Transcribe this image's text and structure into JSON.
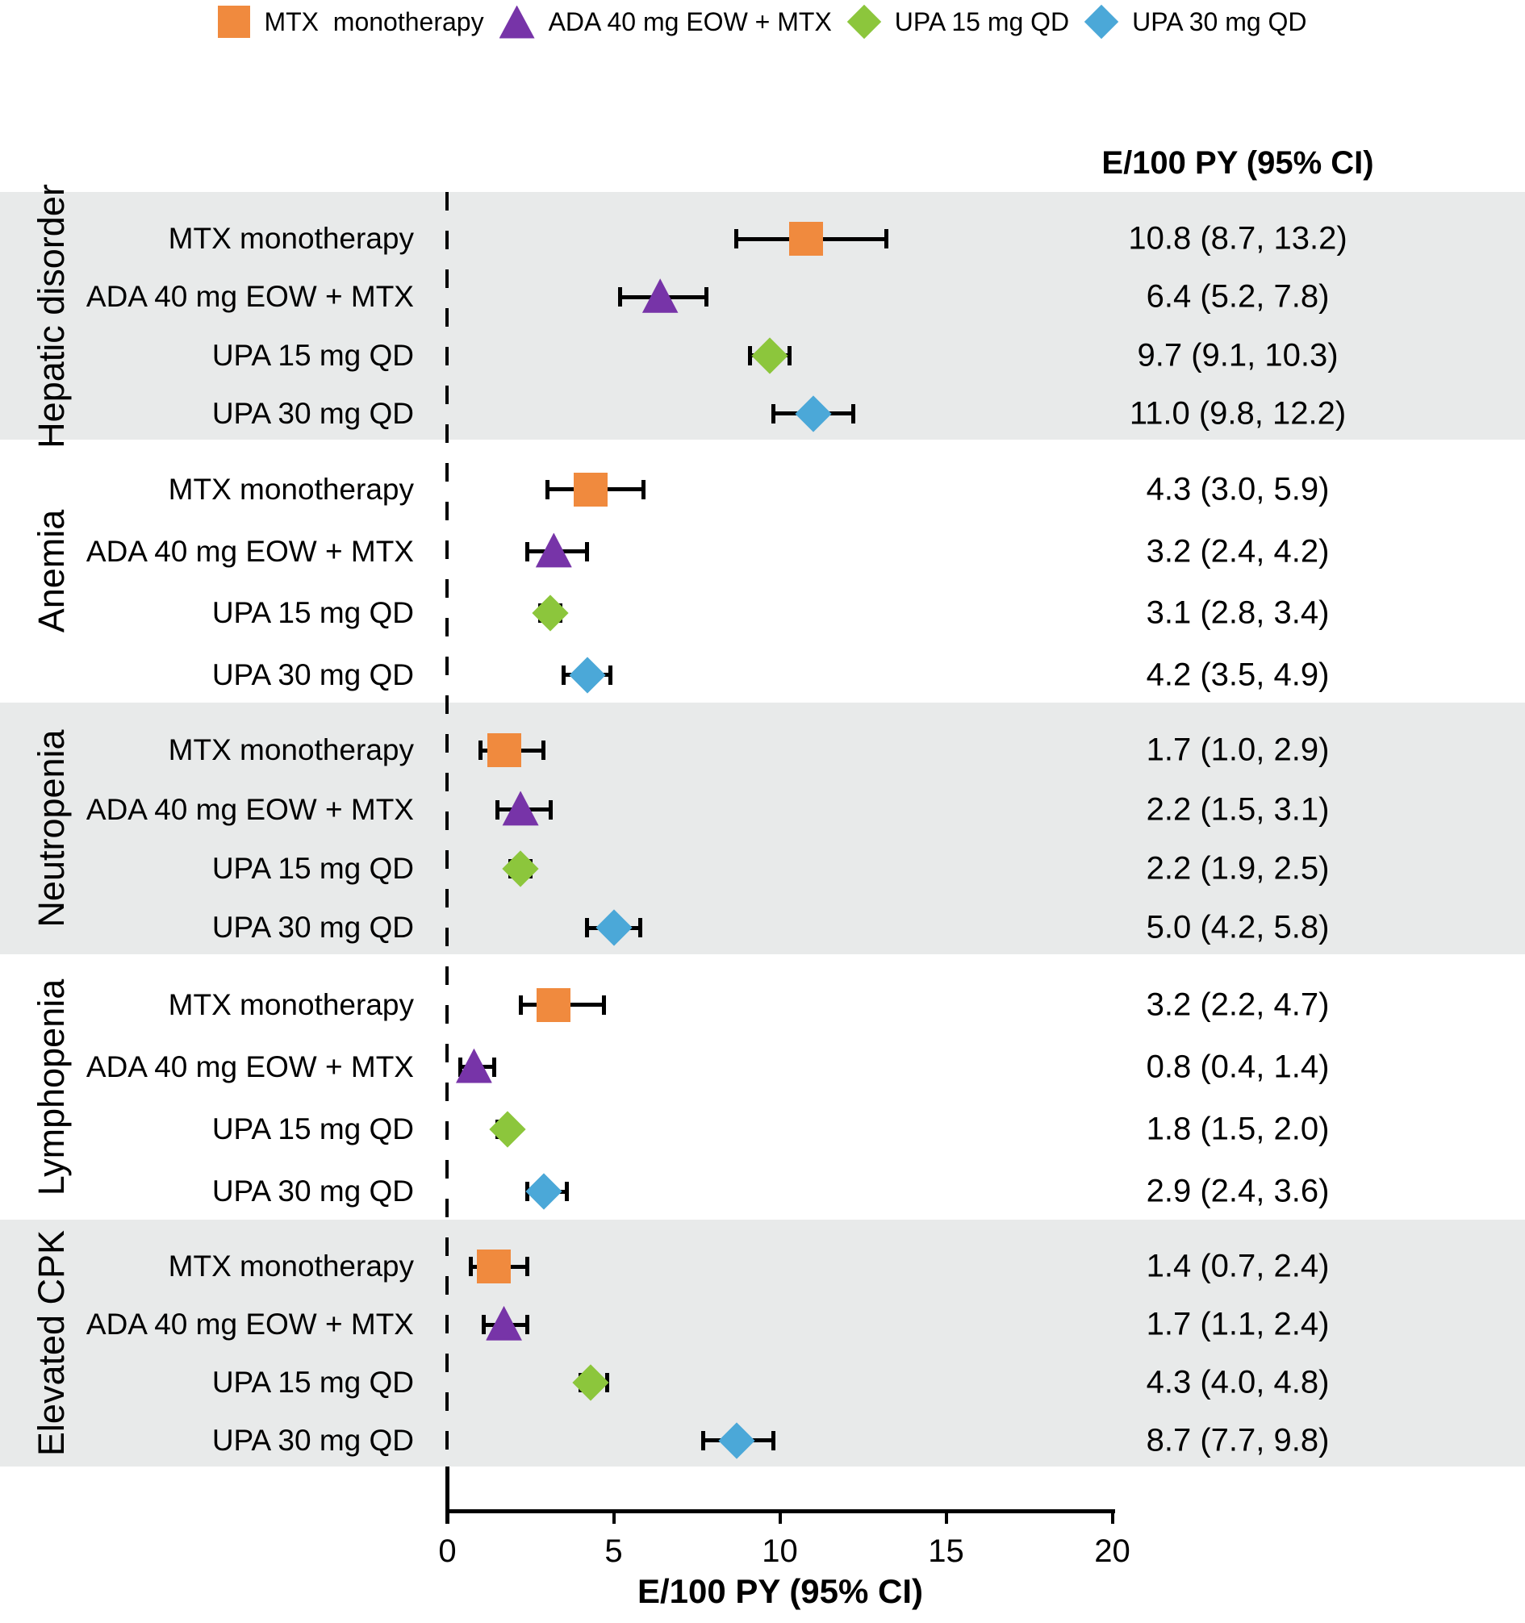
{
  "column_header": "E/100 PY (95% CI)",
  "treatments": [
    {
      "name": "MTX monotherapy",
      "legend_label": "MTX  monotherapy",
      "marker": "square",
      "color": "#F08A3E"
    },
    {
      "name": "ADA 40 mg EOW + MTX",
      "legend_label": "ADA 40 mg EOW + MTX",
      "marker": "triangle",
      "color": "#7734A8"
    },
    {
      "name": "UPA 15 mg QD",
      "legend_label": "UPA 15 mg QD",
      "marker": "diamond",
      "color": "#8CC63C"
    },
    {
      "name": "UPA 30 mg QD",
      "legend_label": "UPA 30 mg QD",
      "marker": "diamond",
      "color": "#4BA8D8"
    }
  ],
  "chart_data": {
    "type": "forest",
    "x_axis": {
      "label": "E/100 PY (95% CI)",
      "ticks": [
        0,
        5,
        10,
        15,
        20
      ],
      "range": [
        0,
        20
      ]
    },
    "shading_color": "#E8EAEA",
    "groups": [
      {
        "name": "Hepatic disorder",
        "shaded": true,
        "rows": [
          {
            "treatment": 0,
            "estimate": 10.8,
            "ci_low": 8.7,
            "ci_high": 13.2,
            "display": "10.8 (8.7, 13.2)"
          },
          {
            "treatment": 1,
            "estimate": 6.4,
            "ci_low": 5.2,
            "ci_high": 7.8,
            "display": "6.4 (5.2, 7.8)"
          },
          {
            "treatment": 2,
            "estimate": 9.7,
            "ci_low": 9.1,
            "ci_high": 10.3,
            "display": "9.7 (9.1, 10.3)"
          },
          {
            "treatment": 3,
            "estimate": 11.0,
            "ci_low": 9.8,
            "ci_high": 12.2,
            "display": "11.0 (9.8, 12.2)"
          }
        ]
      },
      {
        "name": "Anemia",
        "shaded": false,
        "rows": [
          {
            "treatment": 0,
            "estimate": 4.3,
            "ci_low": 3.0,
            "ci_high": 5.9,
            "display": "4.3 (3.0, 5.9)"
          },
          {
            "treatment": 1,
            "estimate": 3.2,
            "ci_low": 2.4,
            "ci_high": 4.2,
            "display": "3.2 (2.4, 4.2)"
          },
          {
            "treatment": 2,
            "estimate": 3.1,
            "ci_low": 2.8,
            "ci_high": 3.4,
            "display": "3.1 (2.8, 3.4)"
          },
          {
            "treatment": 3,
            "estimate": 4.2,
            "ci_low": 3.5,
            "ci_high": 4.9,
            "display": "4.2 (3.5, 4.9)"
          }
        ]
      },
      {
        "name": "Neutropenia",
        "shaded": true,
        "rows": [
          {
            "treatment": 0,
            "estimate": 1.7,
            "ci_low": 1.0,
            "ci_high": 2.9,
            "display": "1.7 (1.0, 2.9)"
          },
          {
            "treatment": 1,
            "estimate": 2.2,
            "ci_low": 1.5,
            "ci_high": 3.1,
            "display": "2.2 (1.5, 3.1)"
          },
          {
            "treatment": 2,
            "estimate": 2.2,
            "ci_low": 1.9,
            "ci_high": 2.5,
            "display": "2.2 (1.9, 2.5)"
          },
          {
            "treatment": 3,
            "estimate": 5.0,
            "ci_low": 4.2,
            "ci_high": 5.8,
            "display": "5.0 (4.2, 5.8)"
          }
        ]
      },
      {
        "name": "Lymphopenia",
        "shaded": false,
        "rows": [
          {
            "treatment": 0,
            "estimate": 3.2,
            "ci_low": 2.2,
            "ci_high": 4.7,
            "display": "3.2 (2.2, 4.7)"
          },
          {
            "treatment": 1,
            "estimate": 0.8,
            "ci_low": 0.4,
            "ci_high": 1.4,
            "display": "0.8 (0.4, 1.4)"
          },
          {
            "treatment": 2,
            "estimate": 1.8,
            "ci_low": 1.5,
            "ci_high": 2.0,
            "display": "1.8 (1.5, 2.0)"
          },
          {
            "treatment": 3,
            "estimate": 2.9,
            "ci_low": 2.4,
            "ci_high": 3.6,
            "display": "2.9 (2.4, 3.6)"
          }
        ]
      },
      {
        "name": "Elevated CPK",
        "shaded": true,
        "rows": [
          {
            "treatment": 0,
            "estimate": 1.4,
            "ci_low": 0.7,
            "ci_high": 2.4,
            "display": "1.4 (0.7, 2.4)"
          },
          {
            "treatment": 1,
            "estimate": 1.7,
            "ci_low": 1.1,
            "ci_high": 2.4,
            "display": "1.7 (1.1, 2.4)"
          },
          {
            "treatment": 2,
            "estimate": 4.3,
            "ci_low": 4.0,
            "ci_high": 4.8,
            "display": "4.3 (4.0, 4.8)"
          },
          {
            "treatment": 3,
            "estimate": 8.7,
            "ci_low": 7.7,
            "ci_high": 9.8,
            "display": "8.7 (7.7, 9.8)"
          }
        ]
      }
    ]
  }
}
